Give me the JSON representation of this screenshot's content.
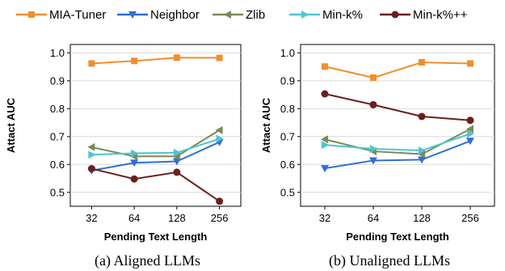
{
  "legend": [
    {
      "name": "MIA-Tuner",
      "color": "#f28e2b",
      "marker": "square"
    },
    {
      "name": "Neighbor",
      "color": "#2f6fd6",
      "marker": "triangle-down"
    },
    {
      "name": "Zlib",
      "color": "#7a8a5a",
      "marker": "triangle-left"
    },
    {
      "name": "Min-k%",
      "color": "#4ec5d0",
      "marker": "triangle-right"
    },
    {
      "name": "Min-k%++",
      "color": "#6b1f1f",
      "marker": "circle"
    }
  ],
  "chart_data": [
    {
      "type": "line",
      "title": "",
      "caption": "(a)  Aligned LLMs",
      "xlabel": "Pending Text Length",
      "ylabel": "Attact AUC",
      "categories": [
        "32",
        "64",
        "128",
        "256"
      ],
      "ylim": [
        0.45,
        1.03
      ],
      "yticks": [
        0.5,
        0.6,
        0.7,
        0.8,
        0.9,
        1.0
      ],
      "ytick_labels": [
        "0.5",
        "0.6",
        "0.7",
        "0.8",
        "0.9",
        "1.0"
      ],
      "series": [
        {
          "name": "MIA-Tuner",
          "values": [
            0.962,
            0.971,
            0.983,
            0.982
          ]
        },
        {
          "name": "Neighbor",
          "values": [
            0.578,
            0.606,
            0.611,
            0.68
          ]
        },
        {
          "name": "Zlib",
          "values": [
            0.662,
            0.629,
            0.629,
            0.723
          ]
        },
        {
          "name": "Min-k%",
          "values": [
            0.635,
            0.64,
            0.642,
            0.692
          ]
        },
        {
          "name": "Min-k%++",
          "values": [
            0.585,
            0.548,
            0.572,
            0.468
          ]
        }
      ],
      "grid": true
    },
    {
      "type": "line",
      "title": "",
      "caption": "(b)  Unaligned LLMs",
      "xlabel": "Pending Text Length",
      "ylabel": "Attact AUC",
      "categories": [
        "32",
        "64",
        "128",
        "256"
      ],
      "ylim": [
        0.45,
        1.03
      ],
      "yticks": [
        0.5,
        0.6,
        0.7,
        0.8,
        0.9,
        1.0
      ],
      "ytick_labels": [
        "0.5",
        "0.6",
        "0.7",
        "0.8",
        "0.9",
        "1.0"
      ],
      "series": [
        {
          "name": "MIA-Tuner",
          "values": [
            0.951,
            0.911,
            0.966,
            0.962
          ]
        },
        {
          "name": "Neighbor",
          "values": [
            0.586,
            0.614,
            0.617,
            0.684
          ]
        },
        {
          "name": "Zlib",
          "values": [
            0.69,
            0.647,
            0.637,
            0.727
          ]
        },
        {
          "name": "Min-k%",
          "values": [
            0.67,
            0.656,
            0.65,
            0.71
          ]
        },
        {
          "name": "Min-k%++",
          "values": [
            0.853,
            0.814,
            0.772,
            0.758
          ]
        }
      ],
      "grid": true
    }
  ]
}
